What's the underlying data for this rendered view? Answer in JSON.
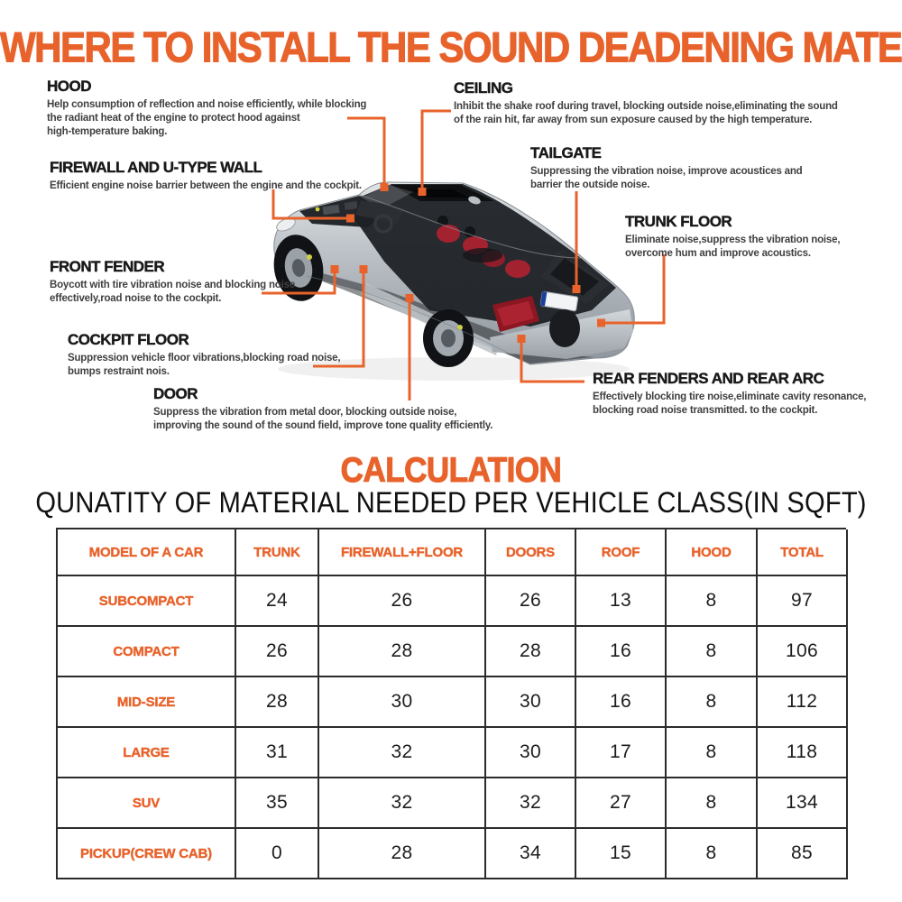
{
  "colors": {
    "accent": "#E8632C",
    "heading": "#191919",
    "body_text": "#404040",
    "table_border": "#2B2B2B",
    "number": "#1D1D1D"
  },
  "title": "WHERE TO INSTALL THE SOUND DEADENING MATERIAL",
  "labels": {
    "hood": {
      "heading": "HOOD",
      "body": "Help consumption of reflection and noise efficiently, while blocking\nthe radiant heat of the engine to protect hood against\nhigh-temperature baking."
    },
    "ceiling": {
      "heading": "CEILING",
      "body": "Inhibit the shake roof during travel, blocking outside noise,eliminating the sound\nof the rain hit, far away from sun exposure caused by the high temperature."
    },
    "firewall": {
      "heading": "FIREWALL AND U-TYPE WALL",
      "body": "Efficient engine noise barrier between the engine and the cockpit."
    },
    "tailgate": {
      "heading": "TAILGATE",
      "body": "Suppressing the vibration noise, improve acoustices and\nbarrier the outside noise."
    },
    "trunk_floor": {
      "heading": "TRUNK FLOOR",
      "body": "Eliminate noise,suppress the vibration noise,\novercome hum and improve acoustics."
    },
    "front_fender": {
      "heading": "FRONT FENDER",
      "body": "Boycott with tire vibration noise and blocking noise\neffectively,road noise to the cockpit."
    },
    "cockpit_floor": {
      "heading": "COCKPIT FLOOR",
      "body": "Suppression vehicle floor vibrations,blocking road noise,\nbumps restraint nois."
    },
    "door": {
      "heading": "DOOR",
      "body": "Suppress the vibration from metal door, blocking outside noise,\nimproving the sound of the sound field, improve tone quality efficiently."
    },
    "rear_fenders": {
      "heading": "REAR FENDERS AND REAR ARC",
      "body": "Effectively blocking tire noise,eliminate cavity resonance,\nblocking road noise transmitted. to the cockpit."
    }
  },
  "calculation": {
    "title": "CALCULATION",
    "subtitle": "QUNATITY OF MATERIAL NEEDED PER VEHICLE CLASS(IN SQFT)",
    "table": {
      "headers": [
        "MODEL OF A CAR",
        "TRUNK",
        "FIREWALL+FLOOR",
        "DOORS",
        "ROOF",
        "HOOD",
        "TOTAL"
      ],
      "rows": [
        {
          "label": "SUBCOMPACT",
          "values": [
            24,
            26,
            26,
            13,
            8,
            97
          ]
        },
        {
          "label": "COMPACT",
          "values": [
            26,
            28,
            28,
            16,
            8,
            106
          ]
        },
        {
          "label": "MID-SIZE",
          "values": [
            28,
            30,
            30,
            16,
            8,
            112
          ]
        },
        {
          "label": "LARGE",
          "values": [
            31,
            32,
            30,
            17,
            8,
            118
          ]
        },
        {
          "label": "SUV",
          "values": [
            35,
            32,
            32,
            27,
            8,
            134
          ]
        },
        {
          "label": "PICKUP(CREW CAB)",
          "values": [
            0,
            28,
            34,
            15,
            8,
            85
          ]
        }
      ]
    }
  }
}
